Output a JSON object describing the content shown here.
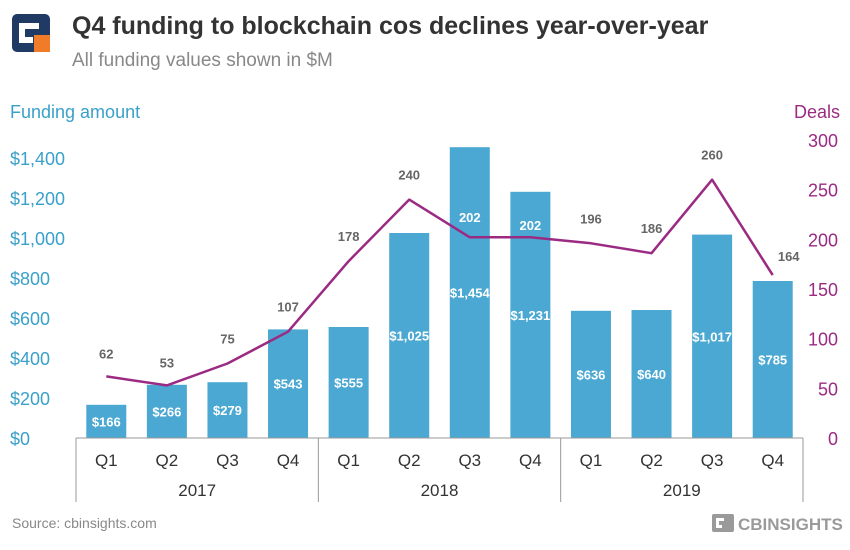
{
  "header": {
    "title": "Q4 funding to blockchain cos declines year-over-year",
    "subtitle": "All funding values shown in $M",
    "logo_icon": "cb-insights-logo-icon"
  },
  "footer": {
    "source": "Source: cbinsights.com",
    "brand": "CBINSIGHTS"
  },
  "colors": {
    "bar": "#4ba8d2",
    "line": "#9b2a83",
    "left_axis": "#3aa0c9",
    "right_axis": "#9b2a83",
    "text_dark": "#333333",
    "text_gray": "#666666",
    "logo_navy": "#1f3b63",
    "logo_orange": "#f07c2a"
  },
  "chart_data": {
    "type": "bar",
    "categories": [
      "Q1",
      "Q2",
      "Q3",
      "Q4",
      "Q1",
      "Q2",
      "Q3",
      "Q4",
      "Q1",
      "Q2",
      "Q3",
      "Q4"
    ],
    "groups": [
      {
        "label": "2017",
        "count": 4
      },
      {
        "label": "2018",
        "count": 4
      },
      {
        "label": "2019",
        "count": 4
      }
    ],
    "series": [
      {
        "name": "Funding amount",
        "type": "bar",
        "axis": "left",
        "values": [
          166,
          266,
          279,
          543,
          555,
          1025,
          1454,
          1231,
          636,
          640,
          1017,
          785
        ],
        "labels": [
          "$166",
          "$266",
          "$279",
          "$543",
          "$555",
          "$1,025",
          "$1,454",
          "$1,231",
          "$636",
          "$640",
          "$1,017",
          "$785"
        ]
      },
      {
        "name": "Deals",
        "type": "line",
        "axis": "right",
        "values": [
          62,
          53,
          75,
          107,
          178,
          240,
          202,
          202,
          196,
          186,
          260,
          164
        ],
        "labels": [
          "62",
          "53",
          "75",
          "107",
          "178",
          "240",
          "202",
          "202",
          "196",
          "186",
          "260",
          "164"
        ]
      }
    ],
    "ylabel_left": "Funding amount",
    "ylabel_right": "Deals",
    "ylim_left": [
      0,
      1500
    ],
    "ylim_right": [
      0,
      300
    ],
    "yticks_left": [
      "$0",
      "$200",
      "$400",
      "$600",
      "$800",
      "$1,000",
      "$1,200",
      "$1,400"
    ],
    "yticks_left_values": [
      0,
      200,
      400,
      600,
      800,
      1000,
      1200,
      1400
    ],
    "yticks_right": [
      "0",
      "50",
      "100",
      "150",
      "200",
      "250",
      "300"
    ],
    "yticks_right_values": [
      0,
      50,
      100,
      150,
      200,
      250,
      300
    ],
    "grid": false,
    "legend": "none"
  }
}
